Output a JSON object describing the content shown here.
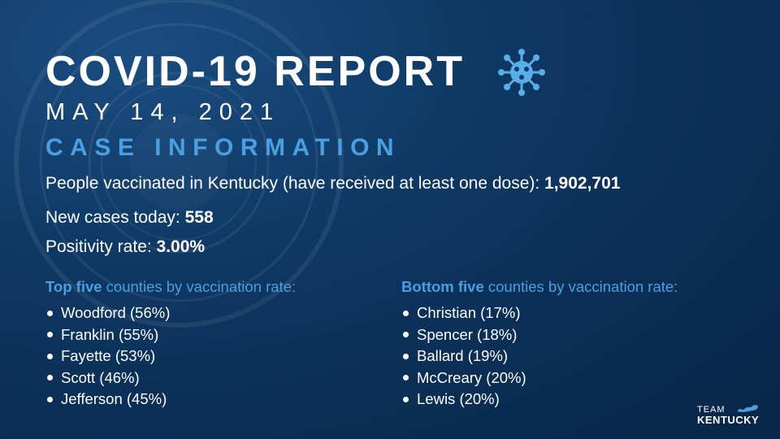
{
  "header": {
    "title": "COVID-19 REPORT",
    "date": "MAY 14, 2021",
    "section": "CASE INFORMATION"
  },
  "stats": [
    {
      "label": "People vaccinated in Kentucky (have received at least one dose): ",
      "value": "1,902,701"
    },
    {
      "label": "New cases today: ",
      "value": "558"
    },
    {
      "label": "Positivity rate: ",
      "value": "3.00%"
    }
  ],
  "top_five": {
    "heading_bold": "Top five",
    "heading_rest": " counties by vaccination rate:",
    "items": [
      "Woodford (56%)",
      "Franklin (55%)",
      "Fayette (53%)",
      "Scott (46%)",
      "Jefferson (45%)"
    ]
  },
  "bottom_five": {
    "heading_bold": "Bottom five",
    "heading_rest": " counties by vaccination rate:",
    "items": [
      "Christian (17%)",
      "Spencer (18%)",
      "Ballard (19%)",
      "McCreary (20%)",
      "Lewis (20%)"
    ]
  },
  "brand": {
    "line1": "TEAM",
    "line2": "KENTUCKY"
  },
  "colors": {
    "accent": "#4a9fe0",
    "background": "#0f3a66",
    "text": "#ffffff"
  },
  "icons": [
    "virus-icon",
    "state-seal-watermark",
    "kentucky-map-icon"
  ]
}
